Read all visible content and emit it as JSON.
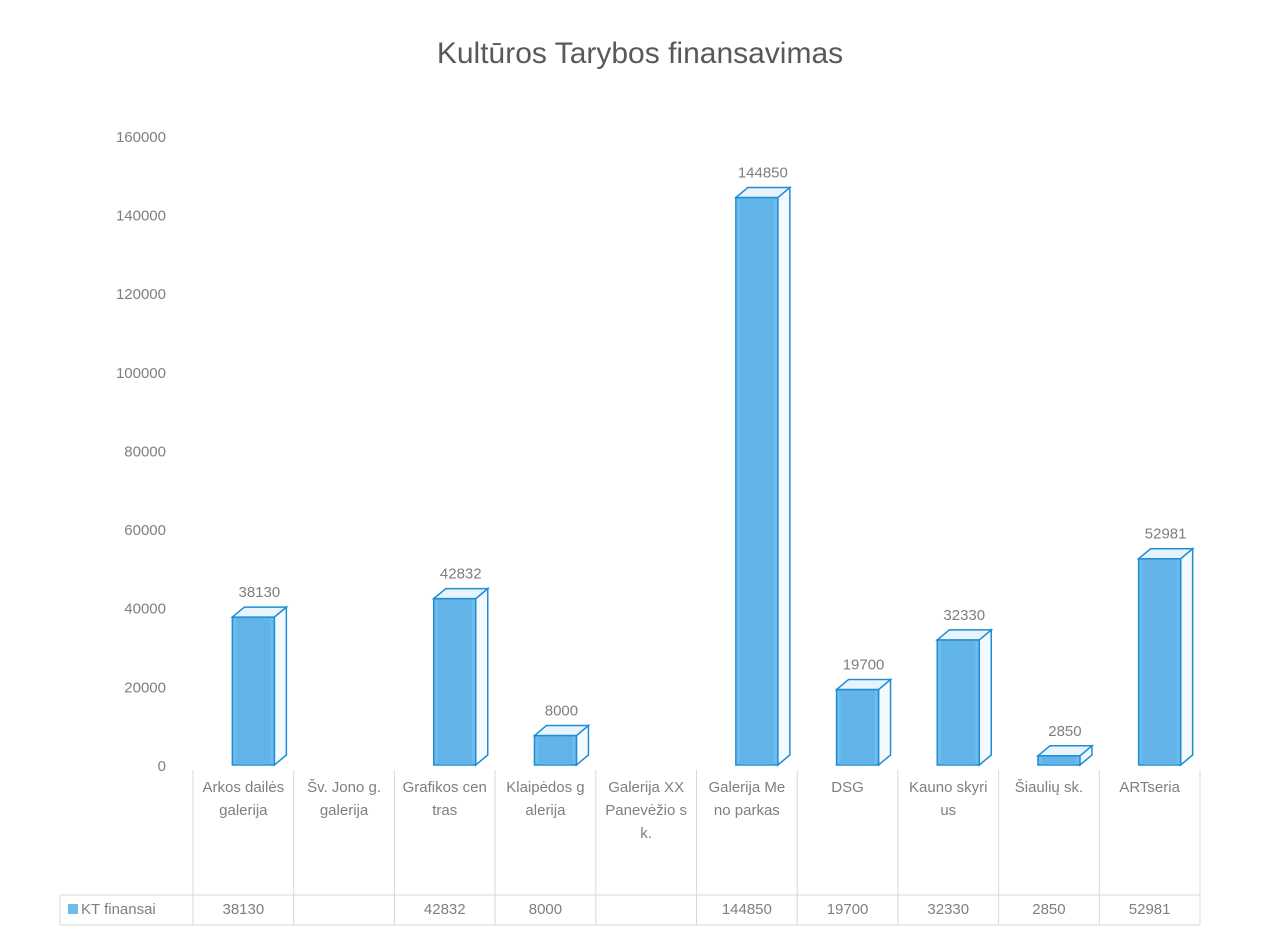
{
  "chart_data": {
    "type": "bar3d",
    "title": "Kultūros Tarybos finansavimas",
    "categories": [
      "Arkos dailės galerija",
      "Šv. Jono g. galerija",
      "Grafikos centras",
      "Klaipėdos galerija",
      "Galerija XX Panevėžio sk.",
      "Galerija Meno parkas",
      "DSG",
      "Kauno skyrius",
      "Šiaulių sk.",
      "ARTseria"
    ],
    "series": [
      {
        "name": "KT finansai",
        "color": "#6cbcec",
        "values": [
          38130,
          null,
          42832,
          8000,
          null,
          144850,
          19700,
          32330,
          2850,
          52981
        ]
      }
    ],
    "ylim": [
      0,
      160000
    ],
    "yticks": [
      0,
      20000,
      40000,
      60000,
      80000,
      100000,
      120000,
      140000,
      160000
    ],
    "grid": false,
    "data_table": true
  }
}
